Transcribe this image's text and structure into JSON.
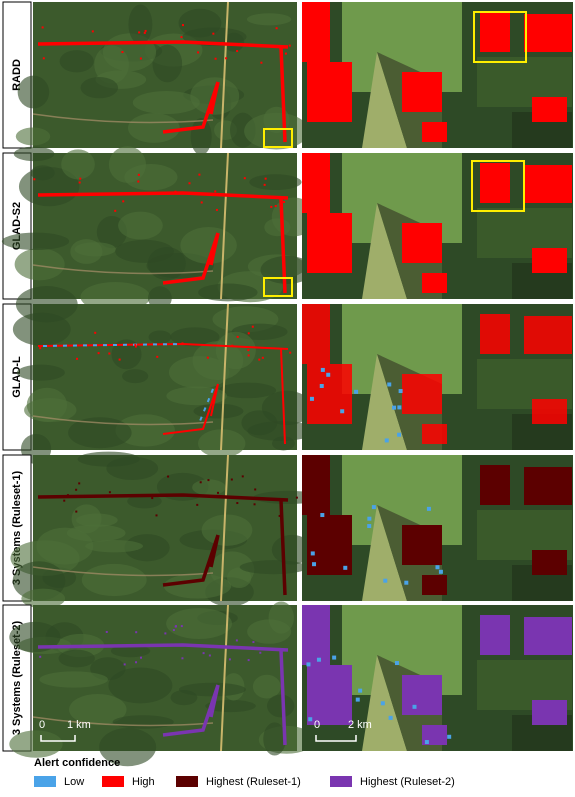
{
  "rows": [
    {
      "label": "RADD"
    },
    {
      "label": "GLAD-S2"
    },
    {
      "label": "GLAD-L"
    },
    {
      "label": "3 Systems (Ruleset-1)"
    },
    {
      "label": "3 Systems (Ruleset-2)"
    }
  ],
  "scale_bars": {
    "left": {
      "start": "0",
      "end": "1 km"
    },
    "right": {
      "start": "0",
      "end": "2 km"
    }
  },
  "legend": {
    "title": "Alert confidence",
    "items": [
      {
        "label": "Low",
        "color": "#4aa3e8"
      },
      {
        "label": "High",
        "color": "#ff0000"
      },
      {
        "label": "Highest (Ruleset-1)",
        "color": "#5c0000"
      },
      {
        "label": "Highest (Ruleset-2)",
        "color": "#7a35b0"
      }
    ]
  }
}
